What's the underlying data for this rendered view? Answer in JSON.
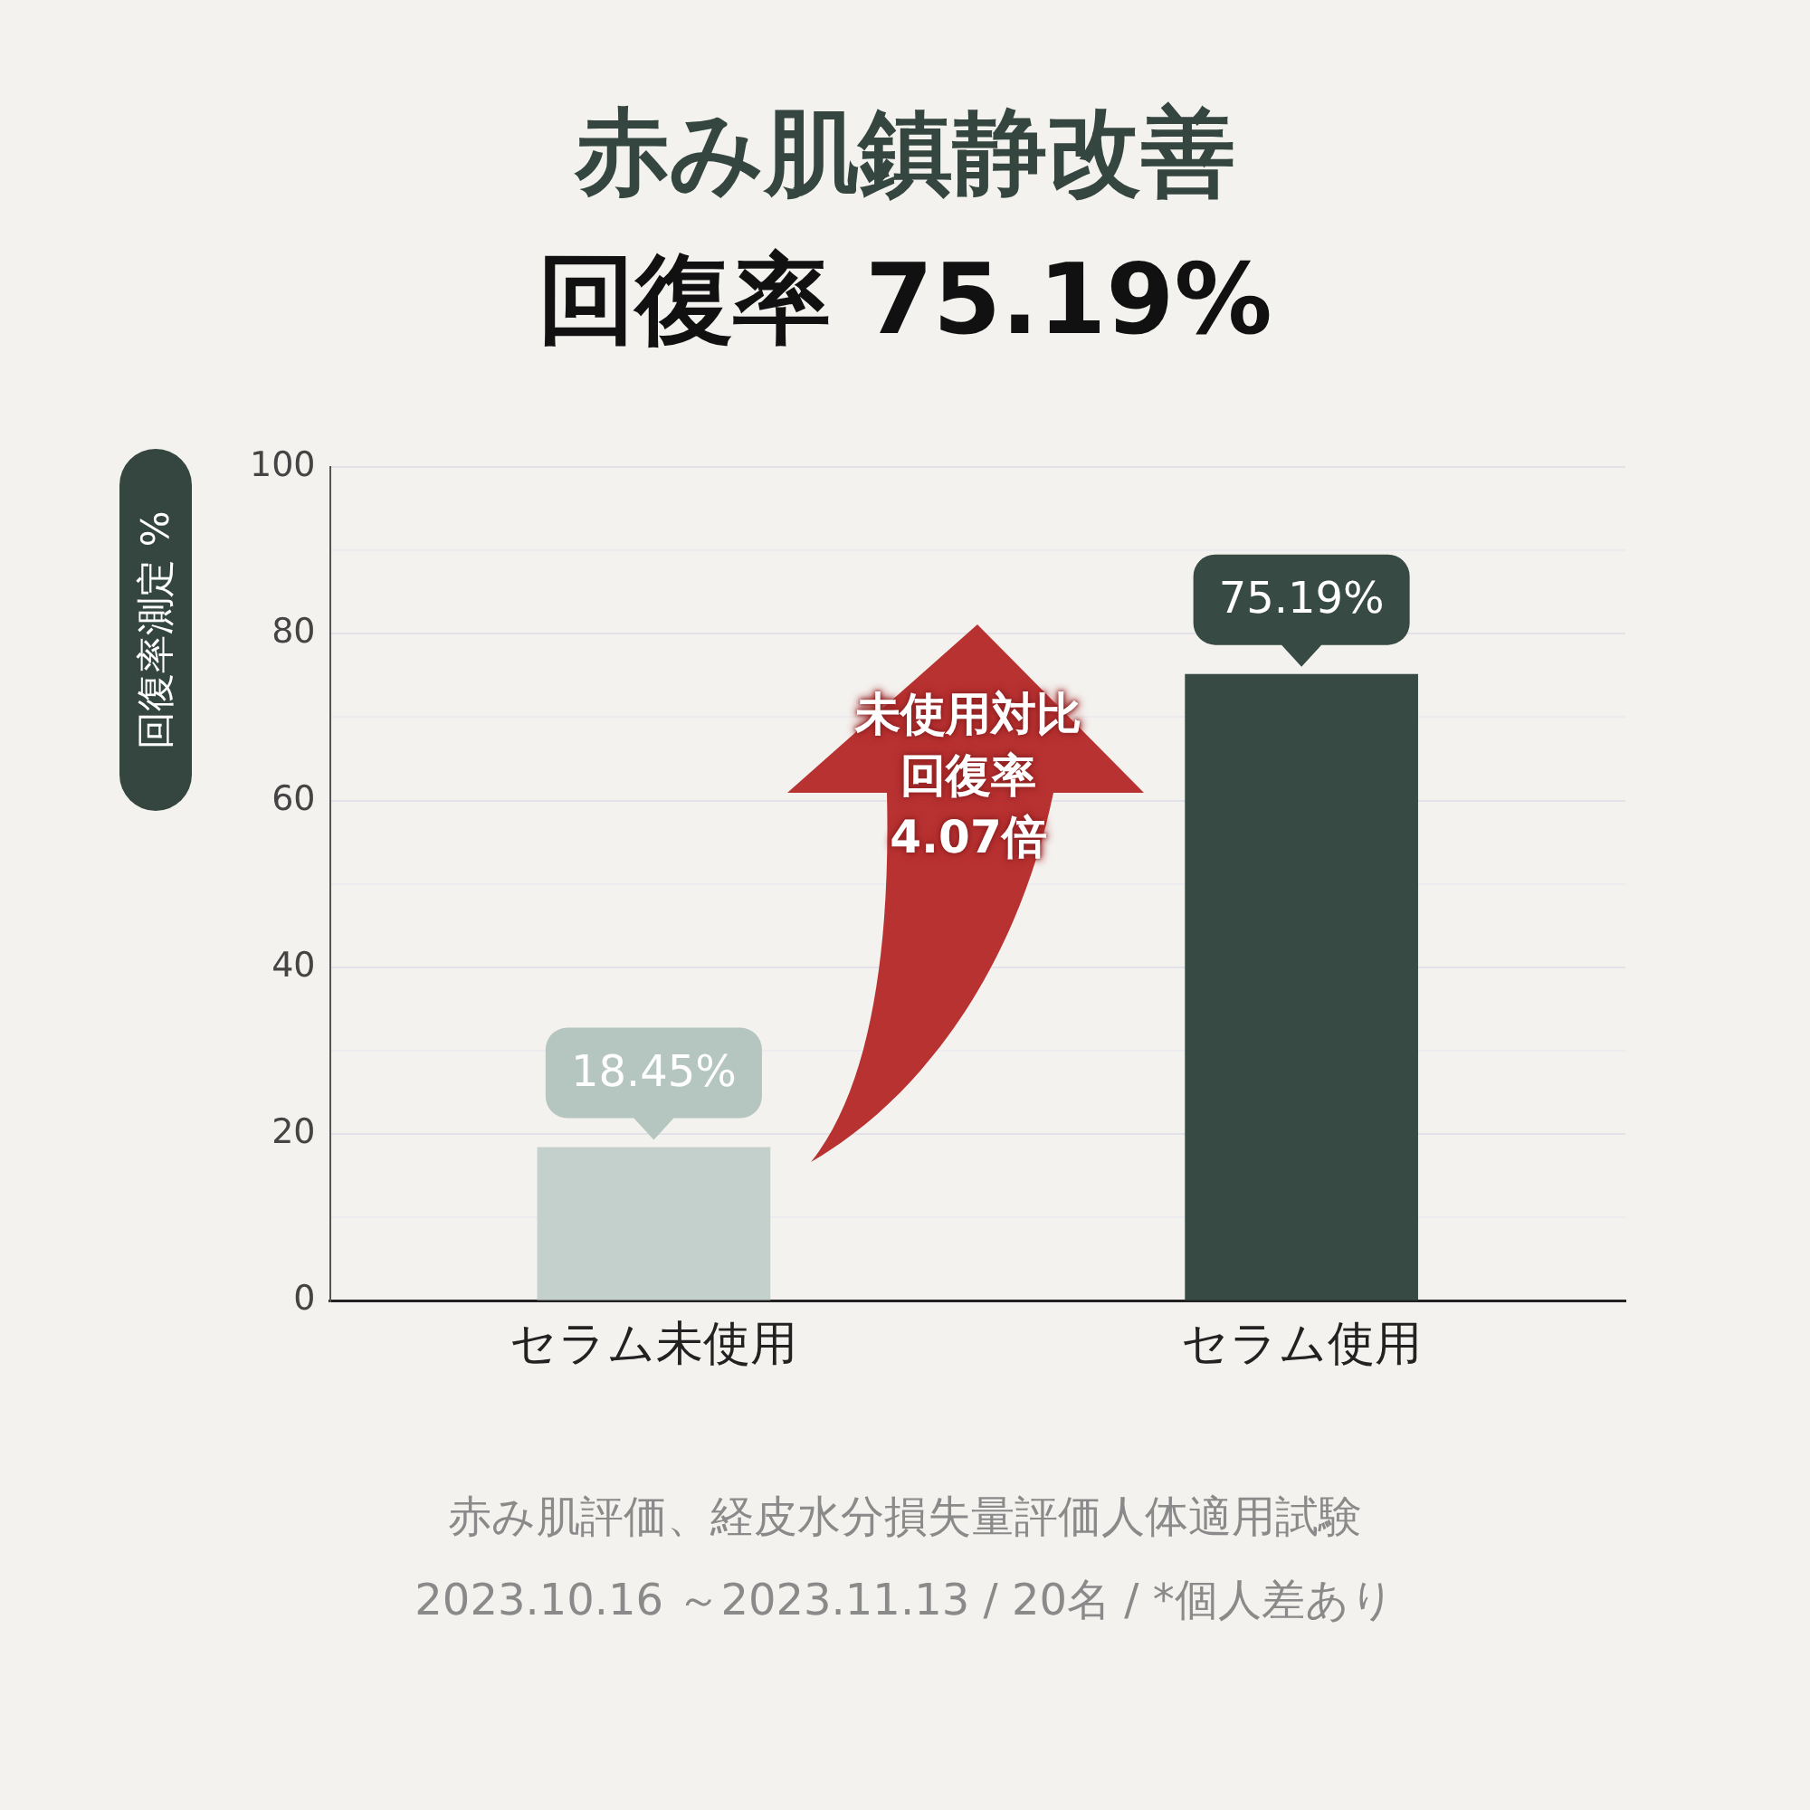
{
  "chart_data": {
    "type": "bar",
    "title": "赤み肌鎮静改善",
    "subtitle": "回復率 75.19%",
    "ylabel": "回復率測定 %",
    "categories": [
      "セラム未使用",
      "セラム使用"
    ],
    "values": [
      18.45,
      75.19
    ],
    "colors": [
      "#c3d0cb",
      "#374a44"
    ],
    "value_labels": [
      "18.45%",
      "75.19%"
    ],
    "ylim": [
      0,
      100
    ],
    "yticks": [
      0,
      {
        "value": 10,
        "label": null
      },
      20,
      {
        "value": 30,
        "label": null
      },
      40,
      {
        "value": 50,
        "label": null
      },
      60,
      {
        "value": 70,
        "label": null
      },
      80,
      {
        "value": 90,
        "label": null
      },
      100
    ],
    "grid": "y",
    "annotations": [
      "未使用対比",
      "回復率",
      "4.07倍",
      "赤み肌評価、経皮水分損失量評価人体適用試験",
      "2023.10.16 ～2023.11.13 /  20名 / *個人差あり"
    ]
  }
}
